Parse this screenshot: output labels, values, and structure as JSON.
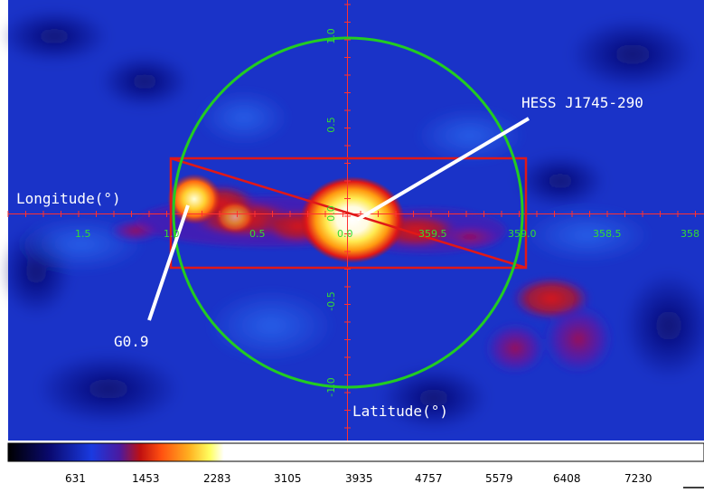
{
  "image": {
    "labels": {
      "longitude": "Longitude(°)",
      "latitude": "Latitude(°)",
      "hess": "HESS J1745-290",
      "g09": "G0.9"
    },
    "lon_ticks": [
      "1.5",
      "1.0",
      "0.5",
      "0.0",
      "359.5",
      "359.0",
      "358.5",
      "358"
    ],
    "lat_ticks": [
      "1.0",
      "0.5",
      "0.0",
      "-0.5",
      "-1.0"
    ],
    "colorbar_ticks": [
      "631",
      "1453",
      "2283",
      "3105",
      "3935",
      "4757",
      "5579",
      "6408",
      "7230"
    ],
    "colors": {
      "background": "#1a33c8",
      "circle": "#22cc22",
      "box": "#e01818",
      "axis": "#ff3030",
      "tick_text": "#33dd33",
      "label_text": "#ffffff",
      "pointer": "#ffffff"
    }
  }
}
